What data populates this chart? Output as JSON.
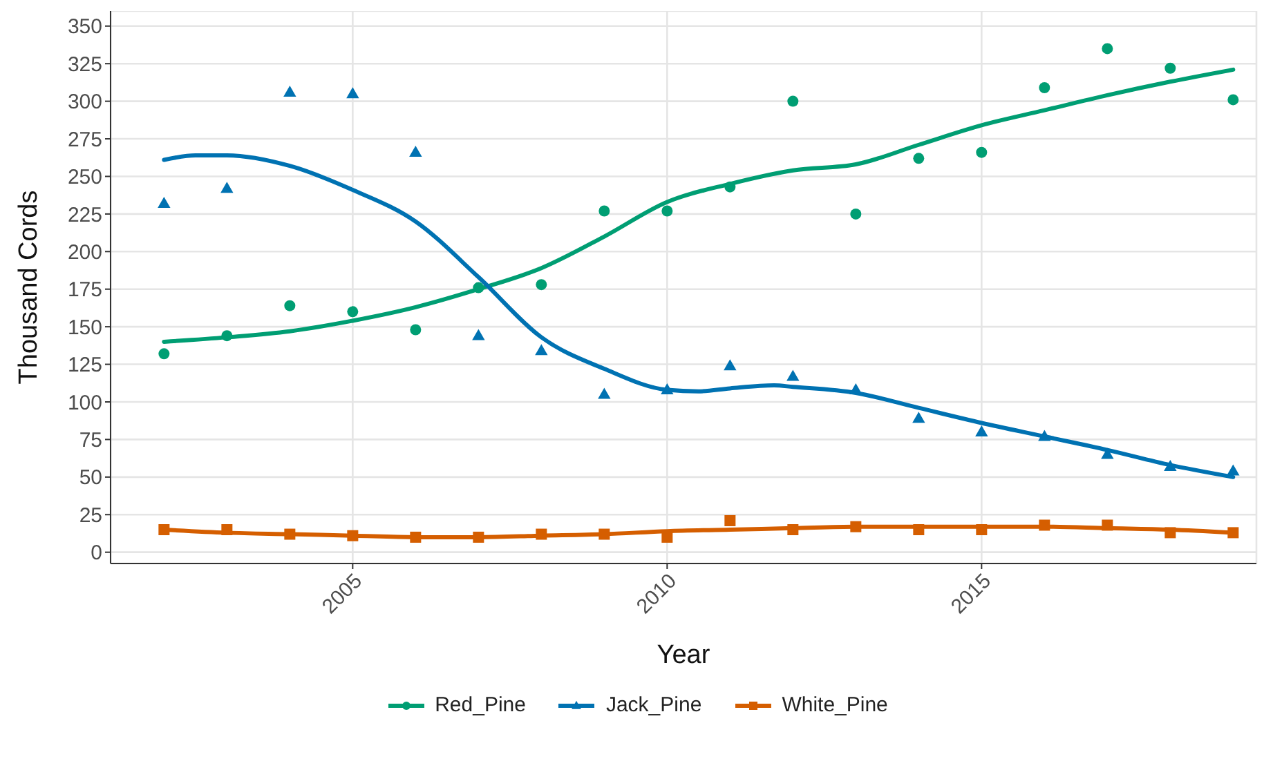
{
  "chart_data": {
    "type": "scatter",
    "xlabel": "Year",
    "ylabel": "Thousand Cords",
    "x": [
      2002,
      2003,
      2004,
      2005,
      2006,
      2007,
      2008,
      2009,
      2010,
      2011,
      2012,
      2013,
      2014,
      2015,
      2016,
      2017,
      2018,
      2019
    ],
    "series": [
      {
        "name": "Red_Pine",
        "color": "#009e73",
        "marker": "circle",
        "values": [
          132,
          144,
          164,
          160,
          148,
          176,
          178,
          227,
          227,
          243,
          300,
          225,
          262,
          266,
          309,
          335,
          322,
          301
        ]
      },
      {
        "name": "Jack_Pine",
        "color": "#0072b2",
        "marker": "triangle",
        "values": [
          232,
          242,
          306,
          305,
          266,
          144,
          134,
          105,
          108,
          124,
          117,
          108,
          89,
          80,
          77,
          65,
          57,
          54
        ]
      },
      {
        "name": "White_Pine",
        "color": "#d55e00",
        "marker": "square",
        "values": [
          15,
          15,
          12,
          11,
          10,
          10,
          12,
          12,
          10,
          21,
          15,
          17,
          15,
          15,
          18,
          18,
          13,
          13
        ]
      },
      {
        "type": "line",
        "color": "#009e73",
        "x": [
          2002,
          2003,
          2004,
          2005,
          2006,
          2007,
          2008,
          2009,
          2010,
          2011,
          2012,
          2013,
          2014,
          2015,
          2016,
          2017,
          2018,
          2019
        ],
        "values": [
          140,
          143,
          147,
          154,
          163,
          175,
          189,
          210,
          233,
          245,
          254,
          258,
          271,
          284,
          294,
          304,
          313,
          321
        ]
      },
      {
        "type": "line",
        "color": "#0072b2",
        "x": [
          2002,
          2002.5,
          2003,
          2004,
          2005,
          2006,
          2007,
          2008,
          2009,
          2010,
          2010.5,
          2011,
          2011.7,
          2012,
          2013,
          2014,
          2015,
          2016,
          2017,
          2018,
          2019
        ],
        "values": [
          261,
          264,
          264,
          257,
          241,
          220,
          183,
          143,
          122,
          108,
          107,
          109,
          111,
          110,
          106,
          96,
          86,
          77,
          68,
          58,
          50
        ]
      },
      {
        "type": "line",
        "color": "#d55e00",
        "x": [
          2002,
          2003,
          2004,
          2005,
          2006,
          2007,
          2008,
          2009,
          2010,
          2011,
          2012,
          2013,
          2014,
          2015,
          2016,
          2017,
          2018,
          2019
        ],
        "values": [
          15,
          13,
          12,
          11,
          10,
          10,
          11,
          12,
          14,
          15,
          16,
          17,
          17,
          17,
          17,
          16,
          15,
          13
        ]
      }
    ],
    "xlim": [
      2001.15,
      2019.37
    ],
    "xticks": [
      2005,
      2010,
      2015
    ],
    "ylim": [
      -7.5,
      360
    ],
    "yticks": [
      0,
      25,
      50,
      75,
      100,
      125,
      150,
      175,
      200,
      225,
      250,
      275,
      300,
      325,
      350
    ],
    "grid": true,
    "legend": "bottom"
  }
}
